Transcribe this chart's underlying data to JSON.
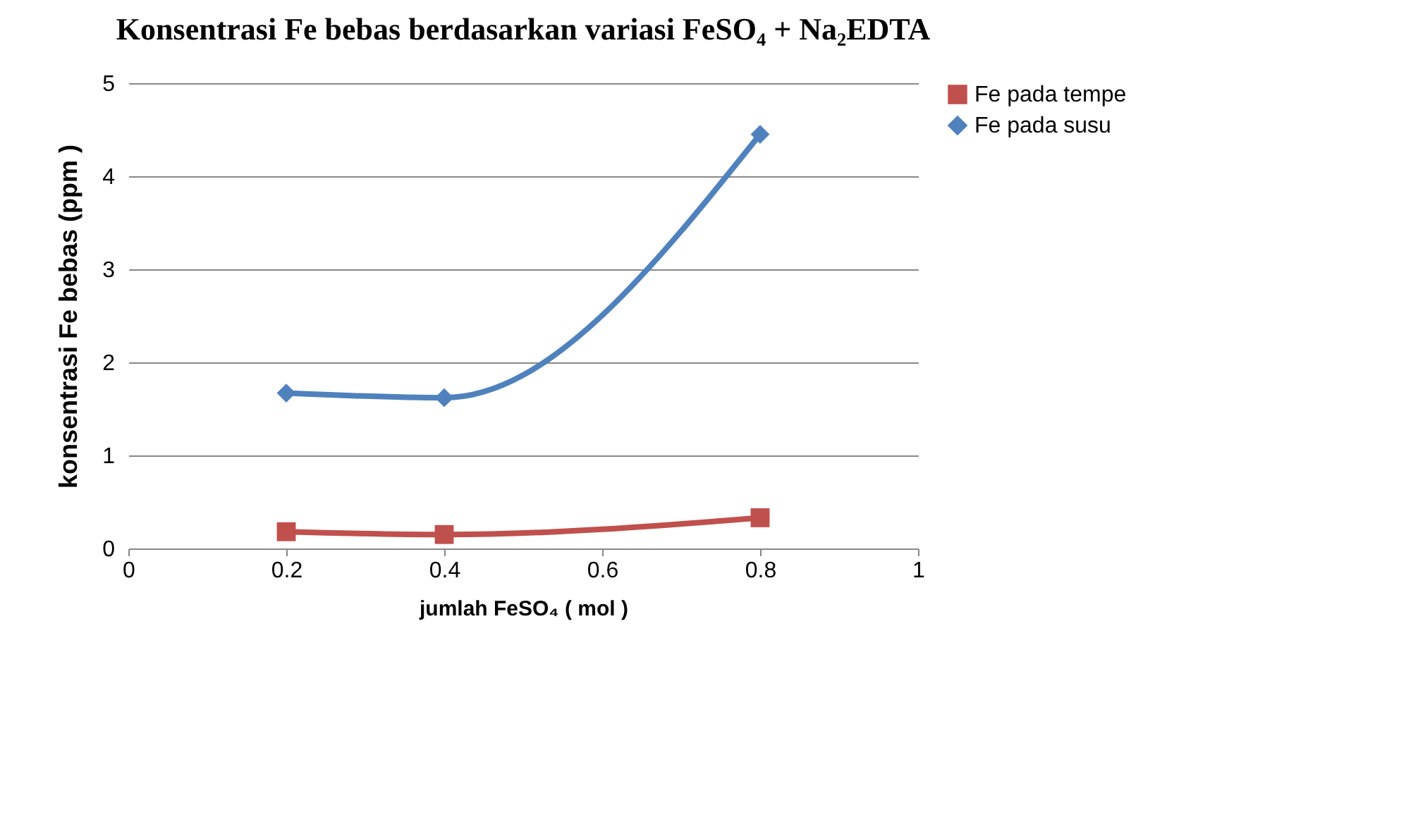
{
  "chart_data": {
    "type": "line",
    "title": "Konsentrasi Fe bebas berdasarkan variasi FeSO₄ + Na₂EDTA",
    "xlabel": "jumlah FeSO₄ ( mol )",
    "ylabel": "konsentrasi  Fe  bebas  (ppm )",
    "x": [
      0.2,
      0.4,
      0.8
    ],
    "series": [
      {
        "name": "Fe pada tempe",
        "color": "#c0504d",
        "marker": "square",
        "values": [
          0.18,
          0.15,
          0.33
        ]
      },
      {
        "name": "Fe pada susu",
        "color": "#4f81bd",
        "marker": "diamond",
        "values": [
          1.67,
          1.62,
          4.45
        ]
      }
    ],
    "xlim": [
      0,
      1
    ],
    "xticks": [
      0,
      0.2,
      0.4,
      0.6,
      0.8,
      1
    ],
    "ylim": [
      0,
      5
    ],
    "yticks": [
      0,
      1,
      2,
      3,
      4,
      5
    ],
    "grid": "y",
    "legend": "right",
    "line_style": "solid"
  }
}
